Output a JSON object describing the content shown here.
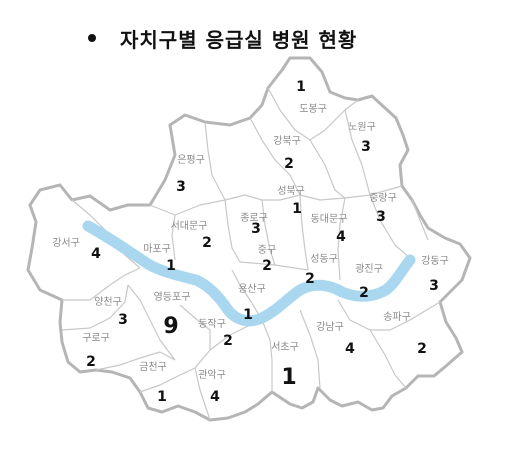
{
  "title": "자치구별 응급실 병원 현황",
  "colors": {
    "river": "#a9d7ef",
    "land": "#ffffff",
    "border": "#c8c8c8",
    "outline": "#b5b5b5",
    "value_default": "#111111",
    "value_blue": "#1010d0",
    "value_red": "#b02030"
  },
  "districts": [
    {
      "id": "dobong",
      "name": "도봉구",
      "value": "1"
    },
    {
      "id": "nowon",
      "name": "노원구",
      "value": "3"
    },
    {
      "id": "gangbuk",
      "name": "강북구",
      "value": "2"
    },
    {
      "id": "eunpyeong",
      "name": "은평구",
      "value": "3"
    },
    {
      "id": "seongbuk",
      "name": "성북구",
      "value": "1"
    },
    {
      "id": "jungnang",
      "name": "중랑구",
      "value": "3"
    },
    {
      "id": "jongno",
      "name": "종로구",
      "value": "3"
    },
    {
      "id": "seodaemun",
      "name": "서대문구",
      "value": "2"
    },
    {
      "id": "dongdaemun",
      "name": "동대문구",
      "value": "4"
    },
    {
      "id": "gangseo",
      "name": "강서구",
      "value": "4"
    },
    {
      "id": "mapo",
      "name": "마포구",
      "value": "1"
    },
    {
      "id": "jung",
      "name": "중구",
      "value": "2"
    },
    {
      "id": "seongdong",
      "name": "성동구",
      "value": "2"
    },
    {
      "id": "gwangjin",
      "name": "광진구",
      "value": "2"
    },
    {
      "id": "gangdong",
      "name": "강동구",
      "value": "3"
    },
    {
      "id": "yangcheon",
      "name": "양천구",
      "value": "3"
    },
    {
      "id": "yeongdeungpo",
      "name": "영등포구",
      "value": "9",
      "color": "blue"
    },
    {
      "id": "yongsan",
      "name": "용산구",
      "value": "1"
    },
    {
      "id": "dongjak",
      "name": "동작구",
      "value": "2"
    },
    {
      "id": "guro",
      "name": "구로구",
      "value": "2"
    },
    {
      "id": "gangnam",
      "name": "강남구",
      "value": "4"
    },
    {
      "id": "songpa",
      "name": "송파구",
      "value": "2"
    },
    {
      "id": "seocho",
      "name": "서초구",
      "value": "1",
      "color": "red"
    },
    {
      "id": "geumcheon",
      "name": "금천구",
      "value": "1"
    },
    {
      "id": "gwanak",
      "name": "관악구",
      "value": "4"
    }
  ]
}
